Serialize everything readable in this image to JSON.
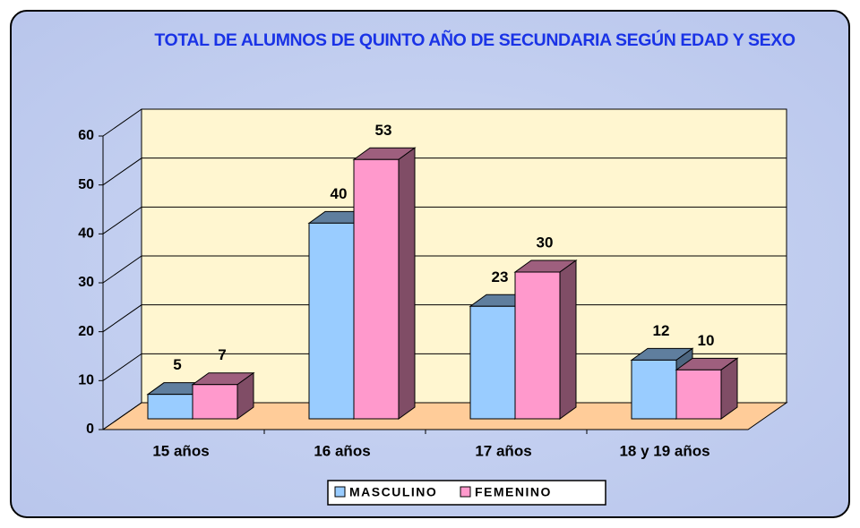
{
  "chart_data": {
    "type": "bar3d",
    "title": "TOTAL DE ALUMNOS DE QUINTO AÑO DE SECUNDARIA SEGÚN EDAD Y SEXO",
    "categories": [
      "15 años",
      "16 años",
      "17 años",
      "18 y 19 años"
    ],
    "series": [
      {
        "name": "MASCULINO",
        "color": "#99ccff",
        "values": [
          5,
          40,
          23,
          12
        ]
      },
      {
        "name": "FEMENINO",
        "color": "#ff99cc",
        "values": [
          7,
          53,
          30,
          10
        ]
      }
    ],
    "ylim": [
      0,
      60
    ],
    "yticks": [
      0,
      10,
      20,
      30,
      40,
      50,
      60
    ],
    "grid": true,
    "legend": "bottom"
  }
}
